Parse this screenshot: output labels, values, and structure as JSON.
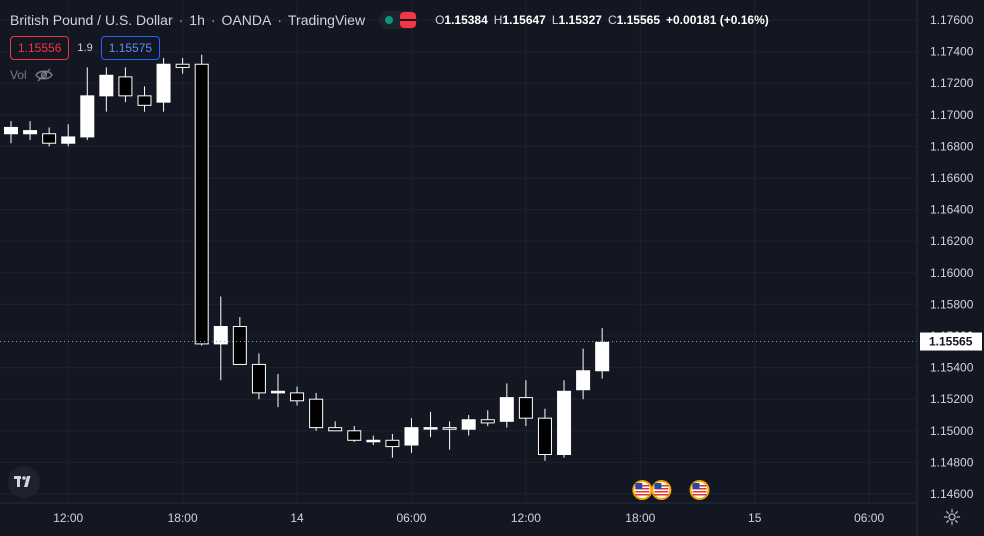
{
  "header": {
    "symbol": "British Pound / U.S. Dollar",
    "interval": "1h",
    "exchange": "OANDA",
    "platform": "TradingView",
    "separator": "·",
    "status_dot_color": "#089981",
    "status_flag_color": "#f23645",
    "ohlc": {
      "o_label": "O",
      "o": "1.15384",
      "h_label": "H",
      "h": "1.15647",
      "l_label": "L",
      "l": "1.15327",
      "c_label": "C",
      "c": "1.15565",
      "change": "+0.00181 (+0.16%)"
    }
  },
  "quotes": {
    "bid": "1.15556",
    "spread": "1.9",
    "ask": "1.15575"
  },
  "volume": {
    "label": "Vol",
    "icon": "eye-off-icon"
  },
  "icons": {
    "logo": "tradingview-logo-icon",
    "settings": "gear-icon",
    "event": "us-flag-icon"
  },
  "colors": {
    "background": "#131722",
    "grid": "#1e222d",
    "candle_up": "#ffffff",
    "candle_down": "#000000",
    "text": "#d1d4dc",
    "last_price_bg": "#ffffff",
    "last_price_text": "#131722",
    "bid": "#f23645",
    "ask": "#2962ff"
  },
  "chart_data": {
    "type": "candlestick",
    "symbol": "British Pound / U.S. Dollar",
    "interval": "1h",
    "ylim": [
      1.1455,
      1.1768
    ],
    "y_ticks": [
      1.146,
      1.148,
      1.15,
      1.152,
      1.154,
      1.156,
      1.158,
      1.16,
      1.162,
      1.164,
      1.166,
      1.168,
      1.17,
      1.172,
      1.174,
      1.176
    ],
    "y_tick_labels": [
      "1.14600",
      "1.14800",
      "1.15000",
      "1.15200",
      "1.15400",
      "1.15600",
      "1.15800",
      "1.16000",
      "1.16200",
      "1.16400",
      "1.16600",
      "1.16800",
      "1.17000",
      "1.17200",
      "1.17400",
      "1.17600"
    ],
    "x_ticks": [
      {
        "bar": 3,
        "label": "12:00"
      },
      {
        "bar": 9,
        "label": "18:00"
      },
      {
        "bar": 15,
        "label": "14"
      },
      {
        "bar": 21,
        "label": "06:00"
      },
      {
        "bar": 27,
        "label": "12:00"
      },
      {
        "bar": 33,
        "label": "18:00"
      },
      {
        "bar": 39,
        "label": "15"
      },
      {
        "bar": 45,
        "label": "06:00"
      }
    ],
    "last_price": "1.15565",
    "last_price_value": 1.15565,
    "candles": [
      {
        "o": 1.1688,
        "h": 1.1696,
        "l": 1.1682,
        "c": 1.1692
      },
      {
        "o": 1.1688,
        "h": 1.1696,
        "l": 1.1684,
        "c": 1.169
      },
      {
        "o": 1.1688,
        "h": 1.1692,
        "l": 1.168,
        "c": 1.1682
      },
      {
        "o": 1.1682,
        "h": 1.1694,
        "l": 1.168,
        "c": 1.1686
      },
      {
        "o": 1.1686,
        "h": 1.173,
        "l": 1.1684,
        "c": 1.1712
      },
      {
        "o": 1.1712,
        "h": 1.173,
        "l": 1.1702,
        "c": 1.1725
      },
      {
        "o": 1.1724,
        "h": 1.173,
        "l": 1.1708,
        "c": 1.1712
      },
      {
        "o": 1.1712,
        "h": 1.1718,
        "l": 1.1702,
        "c": 1.1706
      },
      {
        "o": 1.1708,
        "h": 1.1736,
        "l": 1.1702,
        "c": 1.1732
      },
      {
        "o": 1.1732,
        "h": 1.1736,
        "l": 1.1726,
        "c": 1.173
      },
      {
        "o": 1.1732,
        "h": 1.1738,
        "l": 1.1554,
        "c": 1.1555
      },
      {
        "o": 1.1555,
        "h": 1.1585,
        "l": 1.1532,
        "c": 1.1566
      },
      {
        "o": 1.1566,
        "h": 1.1572,
        "l": 1.1542,
        "c": 1.1542
      },
      {
        "o": 1.1542,
        "h": 1.1549,
        "l": 1.152,
        "c": 1.1524
      },
      {
        "o": 1.1524,
        "h": 1.1536,
        "l": 1.1515,
        "c": 1.1525
      },
      {
        "o": 1.1524,
        "h": 1.1528,
        "l": 1.1516,
        "c": 1.1519
      },
      {
        "o": 1.152,
        "h": 1.1524,
        "l": 1.15,
        "c": 1.1502
      },
      {
        "o": 1.1502,
        "h": 1.1506,
        "l": 1.15,
        "c": 1.15
      },
      {
        "o": 1.15,
        "h": 1.1503,
        "l": 1.1493,
        "c": 1.1494
      },
      {
        "o": 1.1494,
        "h": 1.1497,
        "l": 1.1491,
        "c": 1.1494
      },
      {
        "o": 1.1494,
        "h": 1.1498,
        "l": 1.1483,
        "c": 1.149
      },
      {
        "o": 1.1491,
        "h": 1.1508,
        "l": 1.1486,
        "c": 1.1502
      },
      {
        "o": 1.1502,
        "h": 1.1512,
        "l": 1.1496,
        "c": 1.1502
      },
      {
        "o": 1.1502,
        "h": 1.1506,
        "l": 1.1488,
        "c": 1.1501
      },
      {
        "o": 1.1501,
        "h": 1.151,
        "l": 1.1497,
        "c": 1.1507
      },
      {
        "o": 1.1507,
        "h": 1.1513,
        "l": 1.1503,
        "c": 1.1505
      },
      {
        "o": 1.1506,
        "h": 1.153,
        "l": 1.1502,
        "c": 1.1521
      },
      {
        "o": 1.1521,
        "h": 1.1532,
        "l": 1.1503,
        "c": 1.1508
      },
      {
        "o": 1.1508,
        "h": 1.1514,
        "l": 1.1481,
        "c": 1.1485
      },
      {
        "o": 1.1485,
        "h": 1.1532,
        "l": 1.1483,
        "c": 1.1525
      },
      {
        "o": 1.1526,
        "h": 1.1552,
        "l": 1.152,
        "c": 1.1538
      },
      {
        "o": 1.1538,
        "h": 1.1565,
        "l": 1.1533,
        "c": 1.1556
      }
    ],
    "events": [
      {
        "bar": 33,
        "icon": "us-flag-icon"
      },
      {
        "bar": 34,
        "icon": "us-flag-icon"
      },
      {
        "bar": 36,
        "icon": "us-flag-icon"
      }
    ]
  }
}
